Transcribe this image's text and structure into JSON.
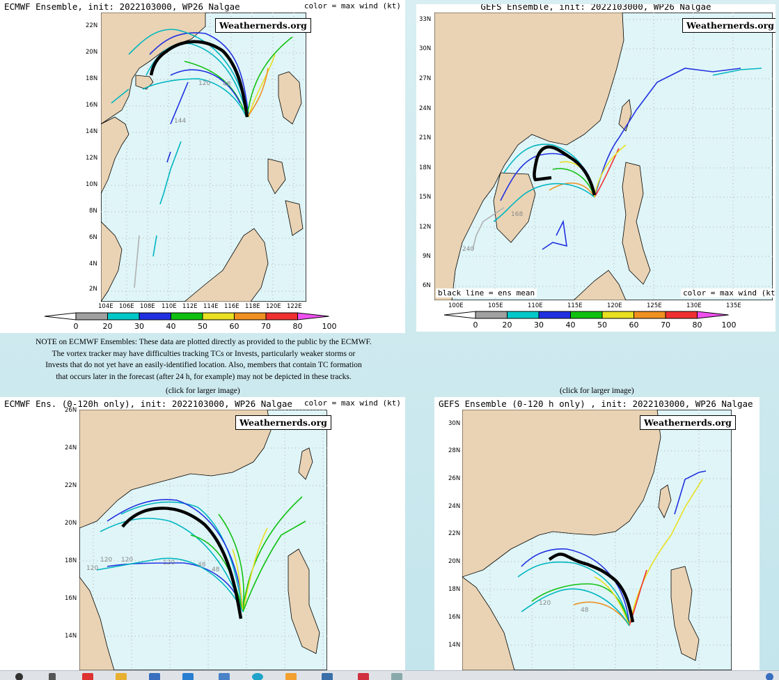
{
  "panels": {
    "ecmwf_full": {
      "title": "ECMWF Ensemble, init: 2022103000, WP26 Nalgae",
      "legend_note": "color = max wind (kt)",
      "logo": "Weathernerds.org",
      "lat_labels": [
        "22N",
        "20N",
        "18N",
        "16N",
        "14N",
        "12N",
        "10N",
        "8N",
        "6N",
        "4N",
        "2N"
      ],
      "lon_labels": [
        "104E",
        "106E",
        "108E",
        "110E",
        "112E",
        "114E",
        "116E",
        "118E",
        "120E",
        "122E"
      ],
      "track_labels": [
        "120",
        "48",
        "144"
      ]
    },
    "gefs_full": {
      "title": "GEFS Ensemble, init: 2022103000, WP26 Nalgae",
      "logo": "Weathernerds.org",
      "lat_labels": [
        "33N",
        "30N",
        "27N",
        "24N",
        "21N",
        "18N",
        "15N",
        "12N",
        "9N",
        "6N"
      ],
      "lon_labels": [
        "100E",
        "105E",
        "110E",
        "115E",
        "120E",
        "125E",
        "130E",
        "135E"
      ],
      "inner_left": "black line = ens mean",
      "inner_right": "color = max wind (kt)",
      "track_labels": [
        "240",
        "168"
      ]
    },
    "ecmwf_120": {
      "title": "ECMWF Ens. (0-120h only), init: 2022103000, WP26 Nalgae",
      "legend_note": "color = max wind (kt)",
      "logo": "Weathernerds.org",
      "lat_labels": [
        "26N",
        "24N",
        "22N",
        "20N",
        "18N",
        "16N",
        "14N"
      ],
      "track_labels": [
        "120",
        "120",
        "120",
        "120",
        "48",
        "48"
      ]
    },
    "gefs_120": {
      "title": "GEFS Ensemble (0-120 h only) , init: 2022103000, WP26 Nalgae",
      "logo": "Weathernerds.org",
      "lat_labels": [
        "30N",
        "28N",
        "26N",
        "24N",
        "22N",
        "20N",
        "18N",
        "16N",
        "14N"
      ],
      "track_labels": [
        "120",
        "48"
      ]
    }
  },
  "colorbar": {
    "values": [
      "0",
      "20",
      "30",
      "40",
      "50",
      "60",
      "70",
      "80",
      "100"
    ],
    "colors": [
      "#ffffff",
      "#a0a0a0",
      "#00c8c8",
      "#2030e0",
      "#10c010",
      "#e8e020",
      "#f09020",
      "#f03030",
      "#f050f0"
    ]
  },
  "note": {
    "lines": [
      "NOTE on ECMWF Ensembles: These data are plotted directly as provided to the public by the ECMWF.",
      "The vortex tracker may have difficulties tracking TCs or Invests, particularly weaker storms or",
      "Invests that do not yet have an easily-identified location. Also, members that contain TC formation",
      "that occurs later in the forecast (after 24 h, for example) may not be depicted in these tracks."
    ]
  },
  "links": {
    "left": "(click for larger image)",
    "right": "(click for larger image)"
  },
  "colors": {
    "ocean": "#dff5f8",
    "land": "#e9d3b4",
    "mean_track": "#000000"
  }
}
